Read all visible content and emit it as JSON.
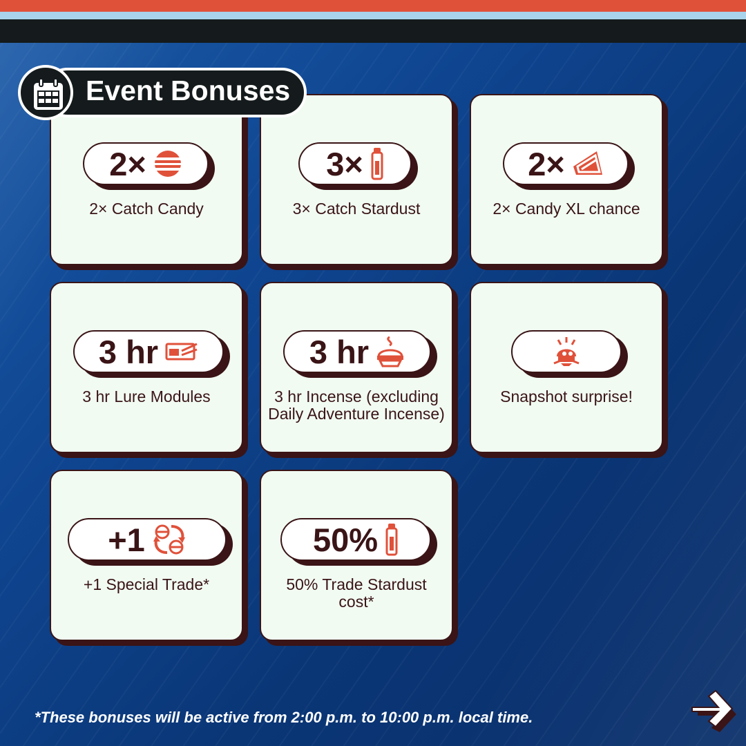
{
  "header": {
    "title": "Event Bonuses",
    "icon": "calendar-icon"
  },
  "colors": {
    "accent": "#e0513a",
    "dark": "#3a1416",
    "card": "#f1fbf2",
    "stripe_blue": "#a9d3ea"
  },
  "bonuses": [
    {
      "value": "2×",
      "icon": "poke-ball-candy-icon",
      "label": "2× Catch Candy"
    },
    {
      "value": "3×",
      "icon": "stardust-icon",
      "label": "3× Catch Stardust"
    },
    {
      "value": "2×",
      "icon": "candy-xl-icon",
      "label": "2× Candy XL chance"
    },
    {
      "value": "3 hr",
      "icon": "lure-module-icon",
      "label": "3 hr Lure Modules"
    },
    {
      "value": "3 hr",
      "icon": "incense-icon",
      "label": "3 hr Incense (excluding Daily Adventure Incense)"
    },
    {
      "value": "",
      "icon": "snapshot-surprise-icon",
      "label": "Snapshot surprise!"
    },
    {
      "value": "+1",
      "icon": "trade-icon",
      "label": "+1 Special Trade*"
    },
    {
      "value": "50%",
      "icon": "stardust-icon",
      "label": "50% Trade Stardust cost*"
    }
  ],
  "footnote": "*These bonuses will be active from 2:00 p.m. to 10:00 p.m. local time.",
  "navigation": {
    "next": "next-arrow-icon"
  }
}
